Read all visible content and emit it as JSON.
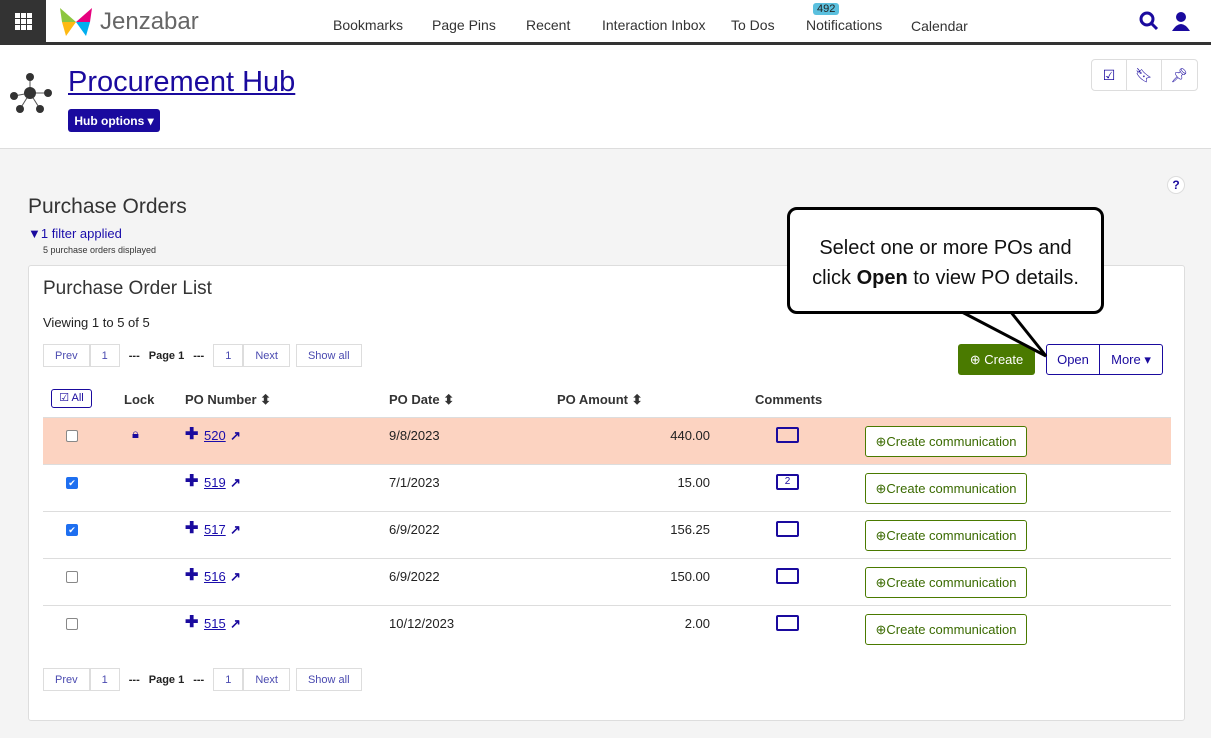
{
  "topbar": {
    "brand": "Jenzabar",
    "nav": [
      "Bookmarks",
      "Page Pins",
      "Recent",
      "Interaction Inbox",
      "To Dos",
      "Notifications",
      "Calendar"
    ],
    "notifications_count": "492"
  },
  "header": {
    "title": "Procurement Hub",
    "hub_options": "Hub options"
  },
  "section": {
    "title": "Purchase Orders",
    "filter": "1 filter applied",
    "count_text": "5 purchase orders displayed",
    "help": "?"
  },
  "panel": {
    "title": "Purchase Order List",
    "viewing": "Viewing 1 to 5 of 5",
    "pager": {
      "prev": "Prev",
      "first": "1",
      "dots": "---",
      "page": "Page 1",
      "last": "1",
      "next": "Next",
      "show_all": "Show all"
    },
    "create": "Create",
    "open": "Open",
    "more": "More",
    "all": "All",
    "columns": {
      "lock": "Lock",
      "po_number": "PO Number",
      "po_date": "PO Date",
      "po_amount": "PO Amount",
      "comments": "Comments"
    },
    "rows": [
      {
        "po": "520",
        "date": "9/8/2023",
        "amount": "440.00",
        "checked": false,
        "locked": true,
        "comments": "",
        "highlight": true
      },
      {
        "po": "519",
        "date": "7/1/2023",
        "amount": "15.00",
        "checked": true,
        "locked": false,
        "comments": "2"
      },
      {
        "po": "517",
        "date": "6/9/2022",
        "amount": "156.25",
        "checked": true,
        "locked": false,
        "comments": ""
      },
      {
        "po": "516",
        "date": "6/9/2022",
        "amount": "150.00",
        "checked": false,
        "locked": false,
        "comments": ""
      },
      {
        "po": "515",
        "date": "10/12/2023",
        "amount": "2.00",
        "checked": false,
        "locked": false,
        "comments": ""
      }
    ],
    "create_communication": "Create communication"
  },
  "callout": {
    "line1": "Select one or more POs and",
    "line2_pre": "click ",
    "line2_bold": "Open",
    "line2_post": " to view PO details."
  },
  "colors": {
    "brand": "#1a0a9e",
    "create": "#4a7a00",
    "highlight": "#fcd3c1"
  }
}
